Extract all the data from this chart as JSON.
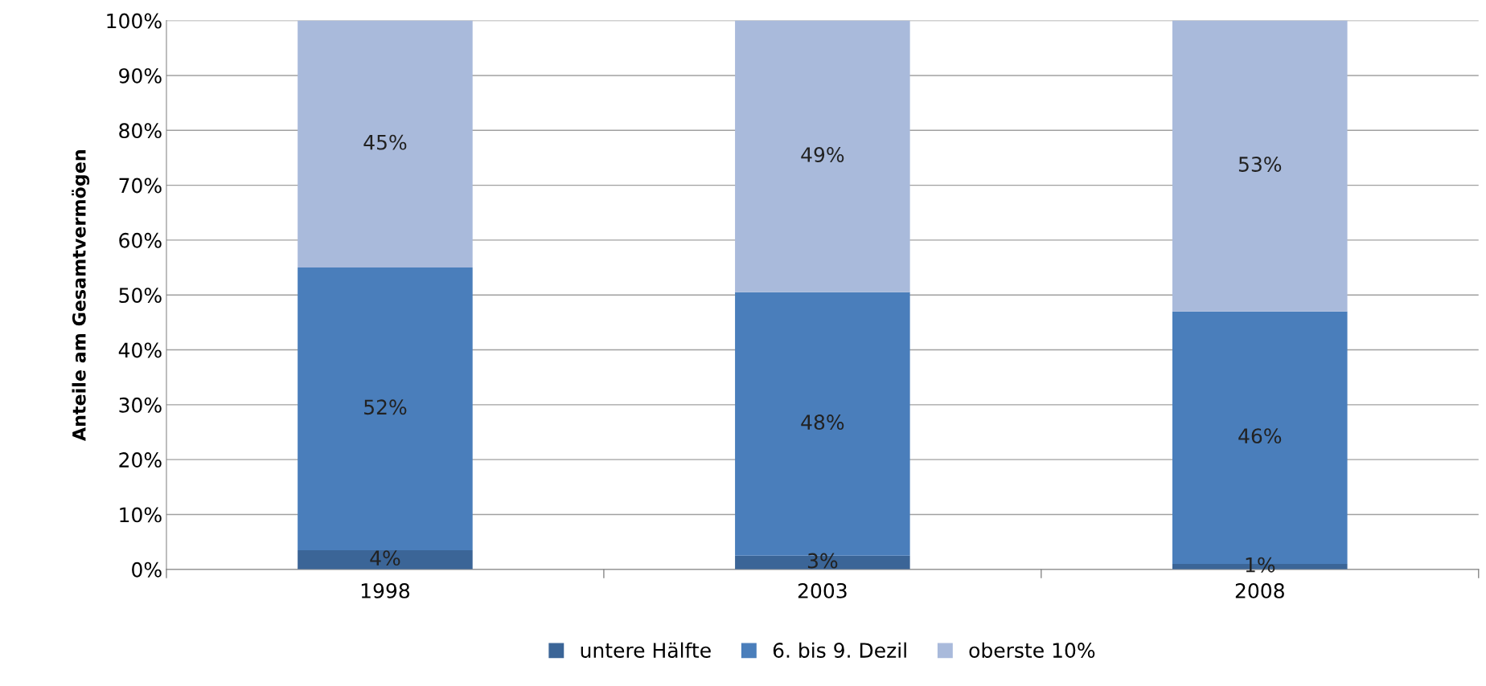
{
  "chart_data": {
    "type": "bar",
    "stacked": true,
    "ylabel": "Anteile am Gesamtvermögen",
    "categories": [
      "1998",
      "2003",
      "2008"
    ],
    "series": [
      {
        "name": "untere Hälfte",
        "color": "#3b6597",
        "values": [
          3.5,
          2.5,
          1
        ],
        "value_labels": [
          "4%",
          "3%",
          "1%"
        ]
      },
      {
        "name": "6. bis 9. Dezil",
        "color": "#4a7ebb",
        "values": [
          51.5,
          48,
          46
        ],
        "value_labels": [
          "52%",
          "48%",
          "46%"
        ]
      },
      {
        "name": "oberste 10%",
        "color": "#a9badb",
        "values": [
          45,
          49.5,
          53
        ],
        "value_labels": [
          "45%",
          "49%",
          "53%"
        ]
      }
    ],
    "ylim": [
      0,
      100
    ],
    "yticks": [
      {
        "value": 0,
        "label": "0%"
      },
      {
        "value": 10,
        "label": "10%"
      },
      {
        "value": 20,
        "label": "20%"
      },
      {
        "value": 30,
        "label": "30%"
      },
      {
        "value": 40,
        "label": "40%"
      },
      {
        "value": 50,
        "label": "50%"
      },
      {
        "value": 60,
        "label": "60%"
      },
      {
        "value": 70,
        "label": "70%"
      },
      {
        "value": 80,
        "label": "80%"
      },
      {
        "value": 90,
        "label": "90%"
      },
      {
        "value": 100,
        "label": "100%"
      }
    ],
    "grid": "y",
    "legend": "bottom"
  }
}
